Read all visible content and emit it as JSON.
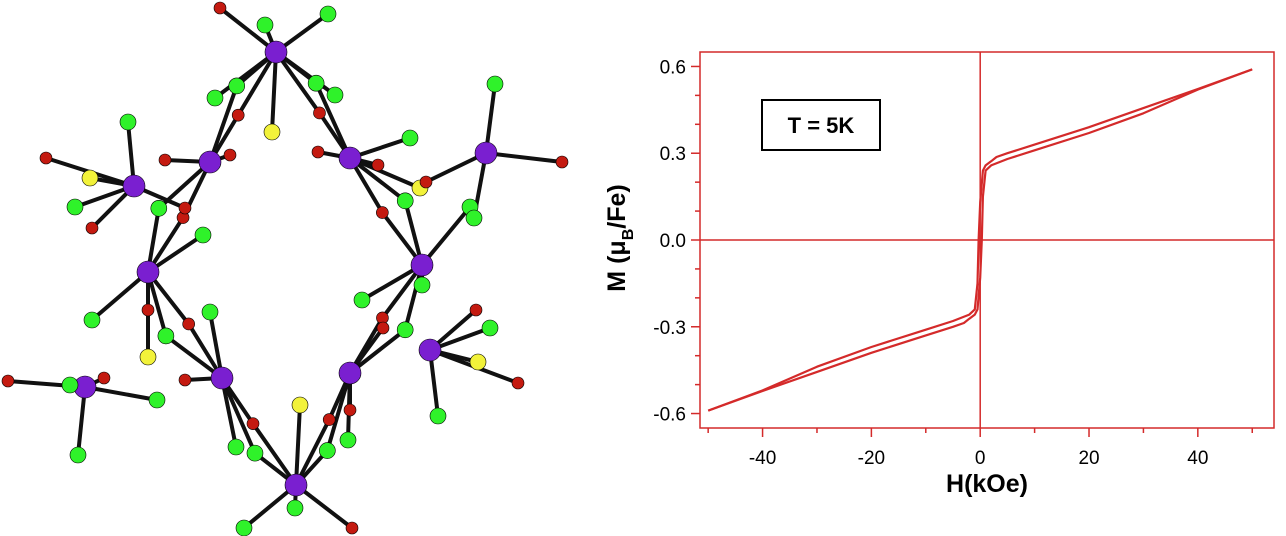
{
  "structure": {
    "atom_colors": {
      "Fe": "#7a1fd0",
      "S": "#f2f23a",
      "O": "#c41a10",
      "F": "#2ff22a",
      "bond": "#111111"
    }
  },
  "chart_data": {
    "type": "line",
    "title": "",
    "xlabel": "H(kOe)",
    "ylabel_main": "M (μ",
    "ylabel_sub": "B",
    "ylabel_tail": "/Fe)",
    "annotation": "T = 5K",
    "xlim": [
      -51.5,
      54
    ],
    "ylim": [
      -0.65,
      0.65
    ],
    "x_ticks": [
      -40,
      -20,
      0,
      20,
      40
    ],
    "x_tick_labels": [
      "-40",
      "-20",
      "0",
      "20",
      "40"
    ],
    "y_ticks": [
      -0.6,
      -0.3,
      0.0,
      0.3,
      0.6
    ],
    "y_tick_labels": [
      "-0.6",
      "-0.3",
      "0.0",
      "0.3",
      "0.6"
    ],
    "zero_lines": true,
    "grid": false,
    "color": "#d42a2a",
    "series": [
      {
        "branch": "descending",
        "x": [
          50,
          40,
          30,
          20,
          10,
          5,
          3,
          2,
          1,
          0.5,
          0,
          -0.3,
          -0.5,
          -1,
          -2,
          -5,
          -10,
          -20,
          -30,
          -40,
          -50
        ],
        "y": [
          0.59,
          0.522,
          0.456,
          0.39,
          0.33,
          0.3,
          0.287,
          0.272,
          0.258,
          0.24,
          0.13,
          0.0,
          -0.15,
          -0.24,
          -0.258,
          -0.28,
          -0.31,
          -0.37,
          -0.438,
          -0.52,
          -0.59
        ]
      },
      {
        "branch": "ascending",
        "x": [
          -50,
          -40,
          -30,
          -20,
          -10,
          -5,
          -3,
          -2,
          -1,
          -0.5,
          0,
          0.3,
          0.5,
          1,
          2,
          5,
          10,
          20,
          30,
          40,
          50
        ],
        "y": [
          -0.59,
          -0.522,
          -0.456,
          -0.39,
          -0.33,
          -0.3,
          -0.287,
          -0.272,
          -0.258,
          -0.24,
          -0.13,
          0.0,
          0.15,
          0.24,
          0.258,
          0.28,
          0.31,
          0.37,
          0.438,
          0.52,
          0.59
        ]
      }
    ]
  }
}
